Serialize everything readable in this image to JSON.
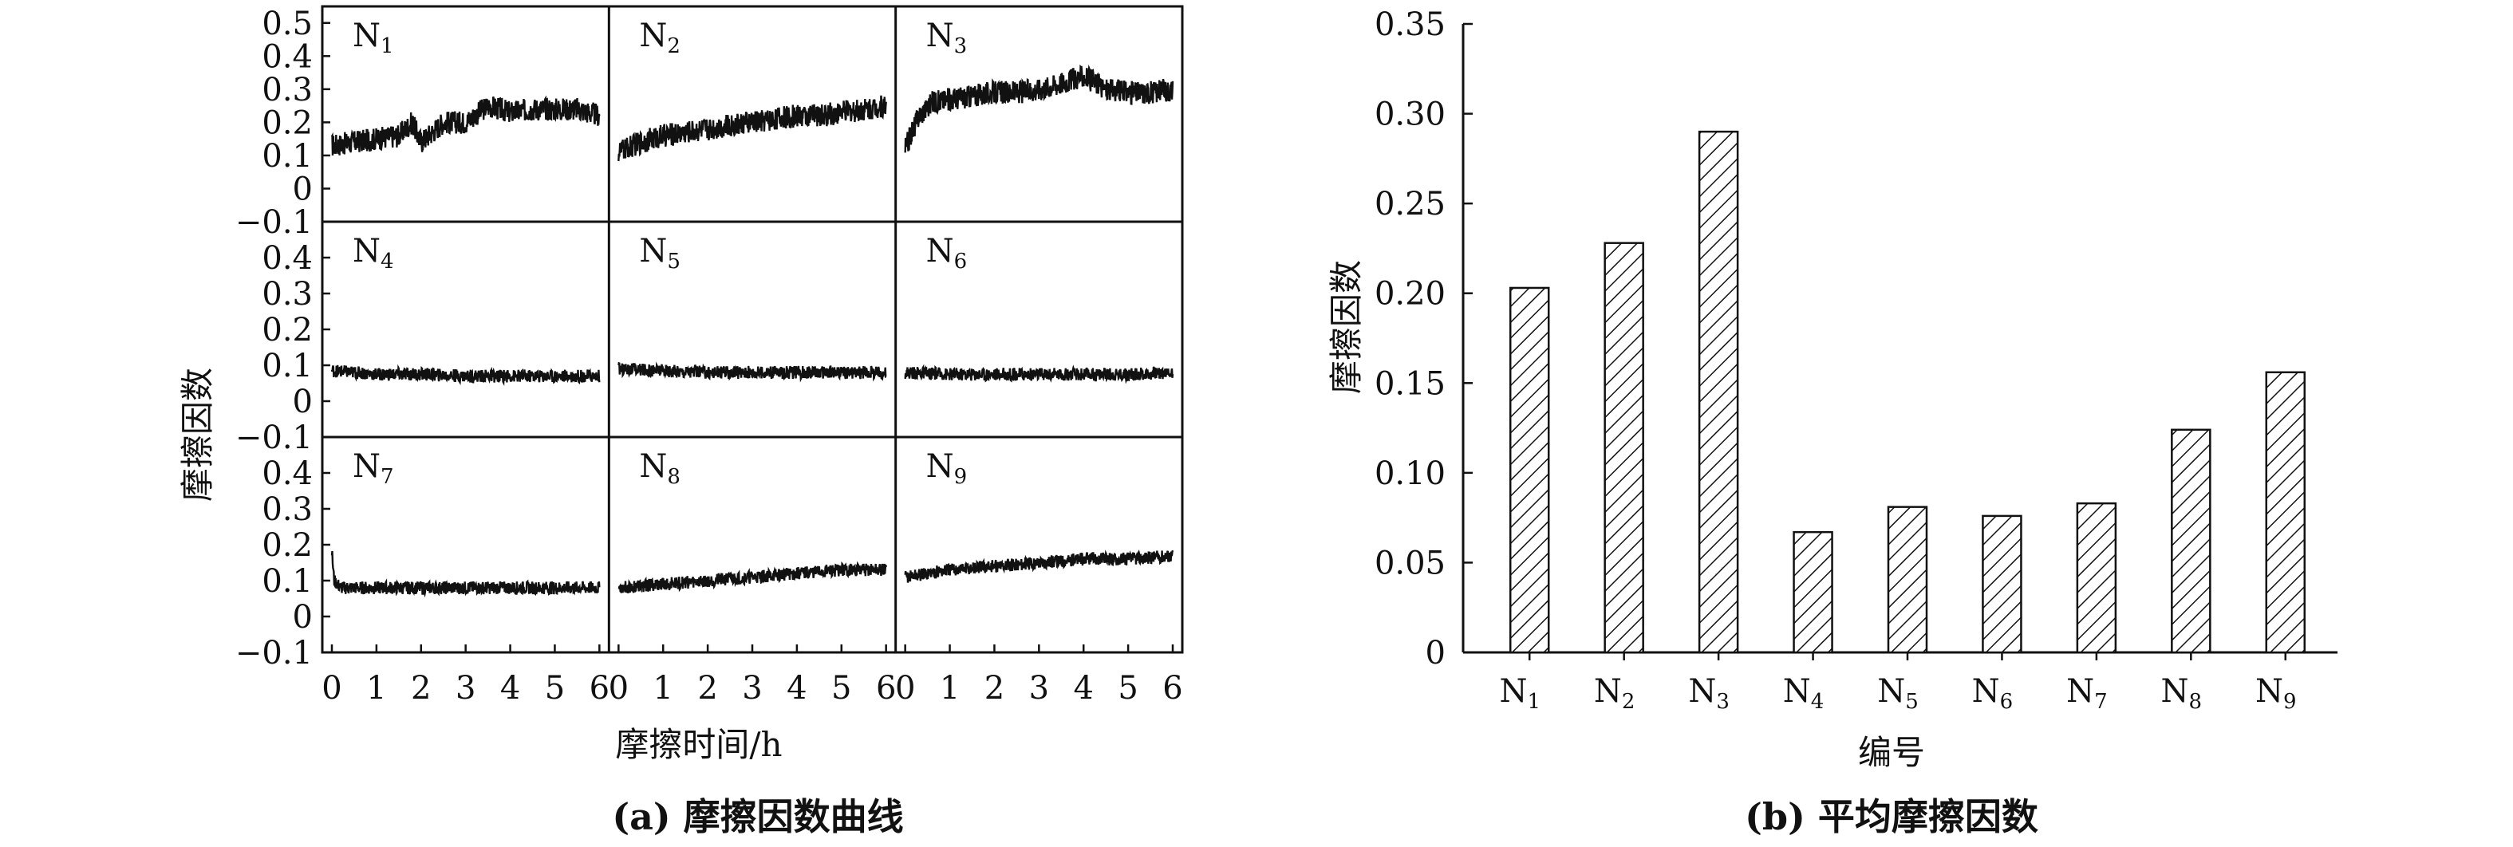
{
  "chart_data": [
    {
      "type": "line",
      "caption": "(a) 摩擦因数曲线",
      "xlabel": "摩擦时间/h",
      "ylabel": "摩擦因数",
      "x_ticks": [
        "0",
        "1",
        "2",
        "3",
        "4",
        "5",
        "6"
      ],
      "xlim": [
        0,
        6
      ],
      "ylim_top_row": [
        -0.1,
        0.55
      ],
      "yticks_top_row": [
        "0.5",
        "0.4",
        "0.3",
        "0.2",
        "0.1",
        "0",
        "−0.1"
      ],
      "ylim_other_rows": [
        -0.1,
        0.5
      ],
      "yticks_other_rows": [
        "0.4",
        "0.3",
        "0.2",
        "0.1",
        "0",
        "−0.1"
      ],
      "grid": false,
      "panels": [
        {
          "name": "N",
          "sub": "1",
          "x": [
            0,
            0.5,
            1,
            1.5,
            1.8,
            2,
            2.5,
            3,
            3.5,
            4,
            4.5,
            5,
            5.5,
            6
          ],
          "y": [
            0.13,
            0.14,
            0.15,
            0.16,
            0.2,
            0.14,
            0.2,
            0.2,
            0.25,
            0.23,
            0.24,
            0.24,
            0.24,
            0.22
          ]
        },
        {
          "name": "N",
          "sub": "2",
          "x": [
            0,
            0.5,
            1,
            1.5,
            2,
            2.5,
            3,
            3.5,
            4,
            4.5,
            5,
            5.5,
            6
          ],
          "y": [
            0.11,
            0.14,
            0.16,
            0.17,
            0.18,
            0.19,
            0.2,
            0.21,
            0.22,
            0.22,
            0.23,
            0.24,
            0.25
          ]
        },
        {
          "name": "N",
          "sub": "3",
          "x": [
            0,
            0.3,
            0.6,
            1,
            1.5,
            2,
            2.5,
            3,
            3.5,
            4,
            4.5,
            5,
            5.5,
            6
          ],
          "y": [
            0.12,
            0.22,
            0.26,
            0.27,
            0.28,
            0.29,
            0.29,
            0.3,
            0.32,
            0.34,
            0.3,
            0.29,
            0.29,
            0.3
          ]
        },
        {
          "name": "N",
          "sub": "4",
          "x": [
            0,
            1,
            2,
            3,
            4,
            5,
            6
          ],
          "y": [
            0.085,
            0.075,
            0.075,
            0.07,
            0.07,
            0.07,
            0.07
          ]
        },
        {
          "name": "N",
          "sub": "5",
          "x": [
            0,
            1,
            2,
            3,
            4,
            5,
            6
          ],
          "y": [
            0.09,
            0.085,
            0.08,
            0.08,
            0.08,
            0.08,
            0.08
          ]
        },
        {
          "name": "N",
          "sub": "6",
          "x": [
            0,
            1,
            2,
            3,
            4,
            5,
            6
          ],
          "y": [
            0.08,
            0.075,
            0.075,
            0.075,
            0.075,
            0.075,
            0.08
          ]
        },
        {
          "name": "N",
          "sub": "7",
          "x": [
            0,
            0.05,
            0.2,
            1,
            2,
            3,
            4,
            5,
            6
          ],
          "y": [
            0.18,
            0.1,
            0.08,
            0.08,
            0.08,
            0.08,
            0.08,
            0.08,
            0.08
          ]
        },
        {
          "name": "N",
          "sub": "8",
          "x": [
            0,
            1,
            2,
            3,
            4,
            5,
            6
          ],
          "y": [
            0.08,
            0.09,
            0.1,
            0.11,
            0.12,
            0.13,
            0.13
          ]
        },
        {
          "name": "N",
          "sub": "9",
          "x": [
            0,
            1,
            2,
            3,
            4,
            5,
            6
          ],
          "y": [
            0.11,
            0.13,
            0.14,
            0.15,
            0.16,
            0.16,
            0.17
          ]
        }
      ]
    },
    {
      "type": "bar",
      "caption": "(b) 平均摩擦因数",
      "xlabel": "编号",
      "ylabel": "摩擦因数",
      "categories": [
        {
          "base": "N",
          "sub": "1"
        },
        {
          "base": "N",
          "sub": "2"
        },
        {
          "base": "N",
          "sub": "3"
        },
        {
          "base": "N",
          "sub": "4"
        },
        {
          "base": "N",
          "sub": "5"
        },
        {
          "base": "N",
          "sub": "6"
        },
        {
          "base": "N",
          "sub": "7"
        },
        {
          "base": "N",
          "sub": "8"
        },
        {
          "base": "N",
          "sub": "9"
        }
      ],
      "values": [
        0.203,
        0.228,
        0.29,
        0.067,
        0.081,
        0.076,
        0.083,
        0.124,
        0.156
      ],
      "ylim": [
        0,
        0.35
      ],
      "y_ticks": [
        "0",
        "0.05",
        "0.10",
        "0.15",
        "0.20",
        "0.25",
        "0.30",
        "0.35"
      ],
      "fill": "diagonal-hatch",
      "grid": false
    }
  ]
}
